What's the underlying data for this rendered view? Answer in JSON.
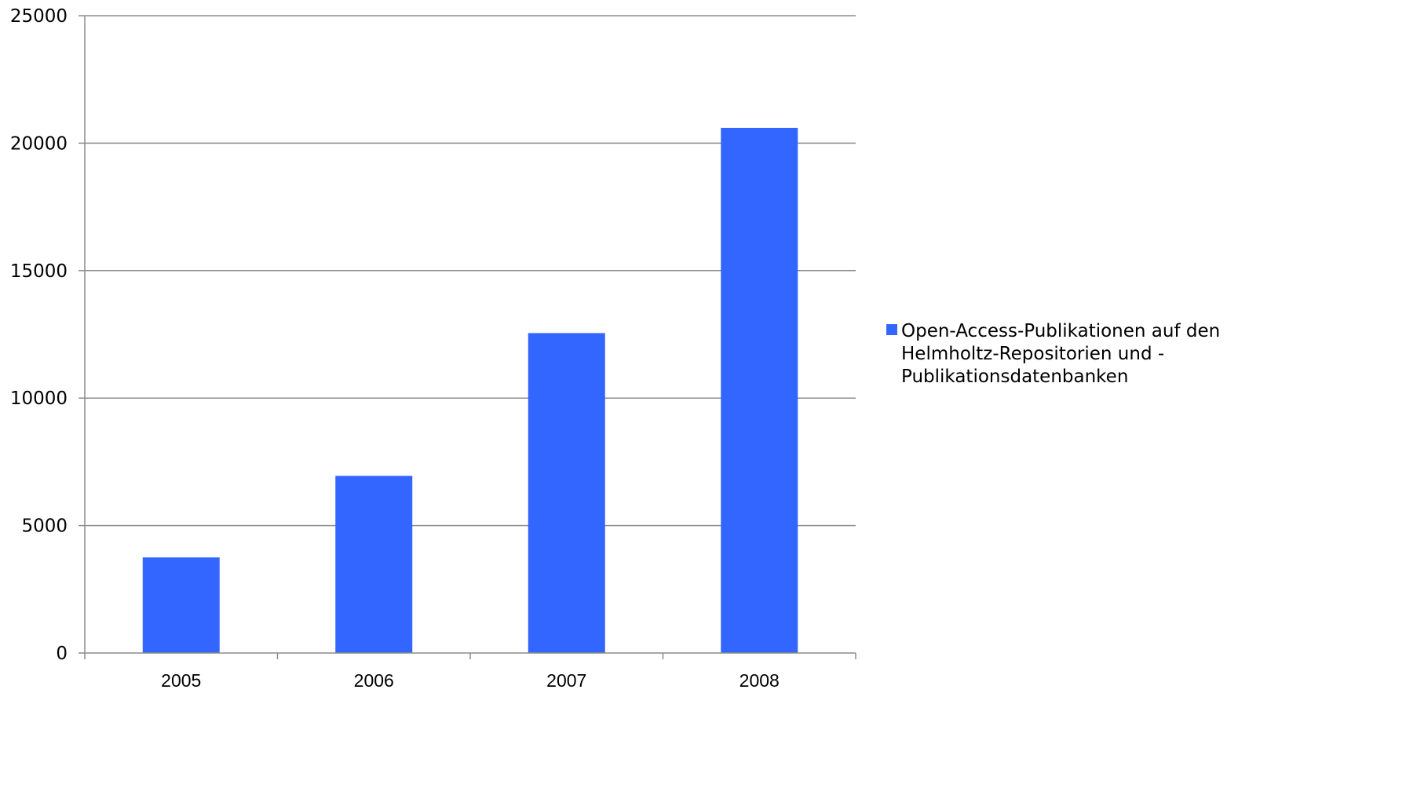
{
  "chart_data": {
    "type": "bar",
    "categories": [
      "2005",
      "2006",
      "2007",
      "2008"
    ],
    "series": [
      {
        "name": "Open-Access-Publikationen auf den Helmholtz-Repositorien und -Publikationsdatenbanken",
        "name_lines": [
          "Open-Access-Publikationen auf den",
          "Helmholtz-Repositorien und -",
          "Publikationsdatenbanken"
        ],
        "values": [
          3750,
          6950,
          12550,
          20600
        ],
        "color": "#3366ff"
      }
    ],
    "title": "",
    "xlabel": "",
    "ylabel": "",
    "ylim": [
      0,
      25000
    ],
    "yticks": [
      "0",
      "5000",
      "10000",
      "15000",
      "20000",
      "25000"
    ],
    "grid": "horizontal",
    "legend_position": "right"
  }
}
